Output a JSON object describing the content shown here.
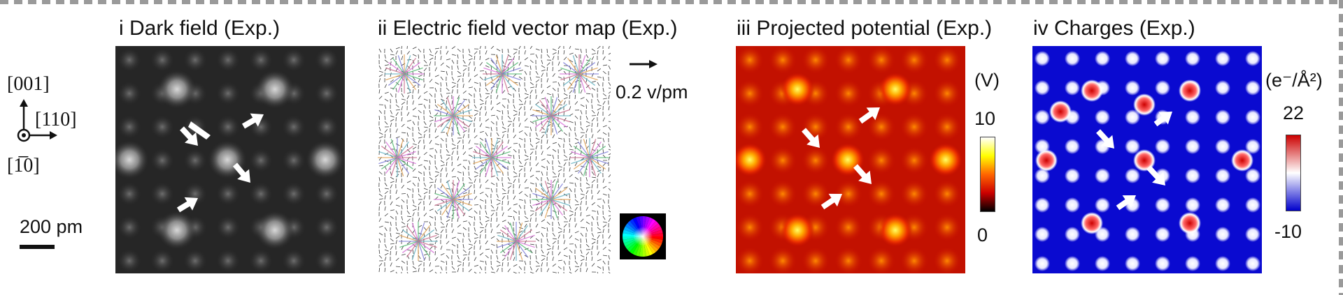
{
  "panels": [
    {
      "title": "i Dark field (Exp.)",
      "image": "dark-field-micrograph"
    },
    {
      "title": "ii Electric field vector map (Exp.)",
      "image": "electric-field-vector-map"
    },
    {
      "title": "iii Projected potential (Exp.)",
      "image": "projected-potential-map"
    },
    {
      "title": "iv Charges (Exp.)",
      "image": "charge-density-map"
    }
  ],
  "orientation": {
    "top": "[001]",
    "right": "[110]",
    "bottom": "[1̅0]"
  },
  "scale_bar": {
    "label": "200 pm"
  },
  "vector_scale": {
    "label": "0.2 v/pm"
  },
  "potential_colorbar": {
    "unit": "(V)",
    "max": "10",
    "min": "0",
    "colors": [
      "#000000",
      "#cc0000",
      "#ff6600",
      "#ffff00",
      "#ffffff"
    ]
  },
  "charge_colorbar": {
    "unit": "(e⁻/Å²)",
    "max": "22",
    "min": "-10",
    "colors": [
      "#0000cc",
      "#ffffff",
      "#cc0000"
    ]
  },
  "arrow_icon": "white-arrow-icon"
}
